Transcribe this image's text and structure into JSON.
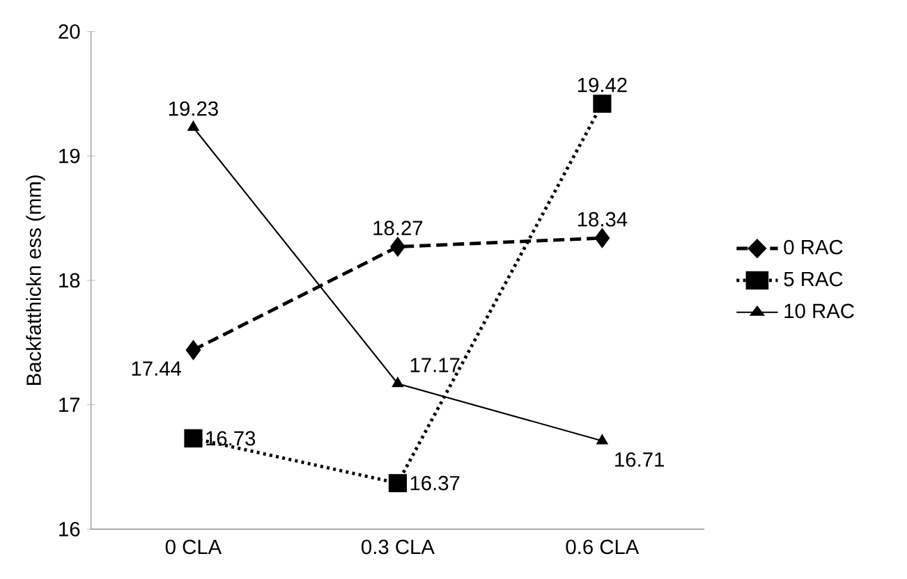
{
  "chart_data": {
    "type": "line",
    "ylabel": "Backfatthickn ess (mm)",
    "categories": [
      "0 CLA",
      "0.3 CLA",
      "0.6 CLA"
    ],
    "series": [
      {
        "name": "0 RAC",
        "color": "#000000",
        "values": [
          17.44,
          18.27,
          18.34
        ],
        "marker": "diamond",
        "line_style": "dashed"
      },
      {
        "name": "5 RAC",
        "color": "#000000",
        "values": [
          16.73,
          16.37,
          19.42
        ],
        "marker": "square",
        "line_style": "dotted"
      },
      {
        "name": "10 RAC",
        "color": "#000000",
        "values": [
          19.23,
          17.17,
          16.71
        ],
        "marker": "triangle",
        "line_style": "solid"
      }
    ],
    "ylim": [
      16,
      20
    ],
    "yticks": [
      16,
      17,
      18,
      19,
      20
    ],
    "grid": false,
    "legend": "right",
    "data_labels": true
  }
}
